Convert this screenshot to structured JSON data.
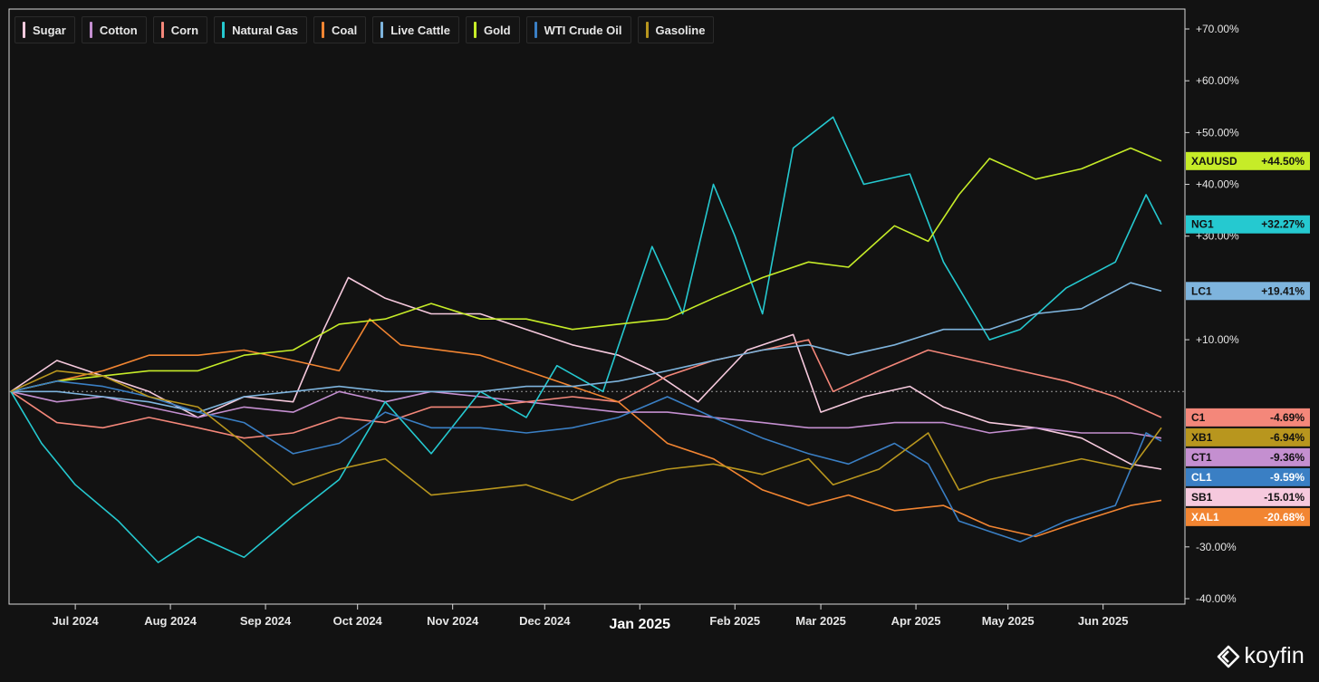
{
  "legend": [
    {
      "name": "Sugar",
      "color": "#f6c9dd"
    },
    {
      "name": "Cotton",
      "color": "#c48fd0"
    },
    {
      "name": "Corn",
      "color": "#f4877a"
    },
    {
      "name": "Natural Gas",
      "color": "#25c9d0"
    },
    {
      "name": "Coal",
      "color": "#f28532"
    },
    {
      "name": "Live Cattle",
      "color": "#7eb4dd"
    },
    {
      "name": "Gold",
      "color": "#c6ec28"
    },
    {
      "name": "WTI Crude Oil",
      "color": "#3a7fc4"
    },
    {
      "name": "Gasoline",
      "color": "#b8961e"
    }
  ],
  "brand": "koyfin",
  "chart_data": {
    "type": "line",
    "yaxis": {
      "min": -40,
      "max": 70,
      "position": "right",
      "ticks": [
        "+70.00%",
        "+60.00%",
        "+50.00%",
        "+40.00%",
        "+30.00%",
        "+10.00%",
        "-30.00%",
        "-40.00%"
      ],
      "tick_values": [
        70,
        60,
        50,
        40,
        30,
        10,
        -30,
        -40
      ]
    },
    "xaxis": {
      "start": "2024-06-10",
      "end": "2025-06-20",
      "ticks": [
        {
          "label": "Jul 2024",
          "date": "2024-07-01"
        },
        {
          "label": "Aug 2024",
          "date": "2024-08-01"
        },
        {
          "label": "Sep 2024",
          "date": "2024-09-01"
        },
        {
          "label": "Oct 2024",
          "date": "2024-10-01"
        },
        {
          "label": "Nov 2024",
          "date": "2024-11-01"
        },
        {
          "label": "Dec 2024",
          "date": "2024-12-01"
        },
        {
          "label": "Jan 2025",
          "date": "2025-01-01",
          "major": true
        },
        {
          "label": "Feb 2025",
          "date": "2025-02-01"
        },
        {
          "label": "Mar 2025",
          "date": "2025-03-01"
        },
        {
          "label": "Apr 2025",
          "date": "2025-04-01"
        },
        {
          "label": "May 2025",
          "date": "2025-05-01"
        },
        {
          "label": "Jun 2025",
          "date": "2025-06-01"
        }
      ]
    },
    "zero_line": true,
    "series": [
      {
        "name": "Sugar",
        "color": "#f6c9dd",
        "end_label": "SB1",
        "end_value": "-15.01%",
        "points": [
          [
            "2024-06-10",
            0
          ],
          [
            "2024-06-25",
            6
          ],
          [
            "2024-07-10",
            3
          ],
          [
            "2024-07-25",
            0
          ],
          [
            "2024-08-10",
            -5
          ],
          [
            "2024-08-25",
            -1
          ],
          [
            "2024-09-10",
            -2
          ],
          [
            "2024-09-20",
            12
          ],
          [
            "2024-09-28",
            22
          ],
          [
            "2024-10-10",
            18
          ],
          [
            "2024-10-25",
            15
          ],
          [
            "2024-11-10",
            15
          ],
          [
            "2024-11-25",
            12
          ],
          [
            "2024-12-10",
            9
          ],
          [
            "2024-12-25",
            7
          ],
          [
            "2025-01-05",
            4
          ],
          [
            "2025-01-20",
            -2
          ],
          [
            "2025-02-05",
            8
          ],
          [
            "2025-02-20",
            11
          ],
          [
            "2025-03-01",
            -4
          ],
          [
            "2025-03-15",
            -1
          ],
          [
            "2025-03-30",
            1
          ],
          [
            "2025-04-10",
            -3
          ],
          [
            "2025-04-25",
            -6
          ],
          [
            "2025-05-10",
            -7
          ],
          [
            "2025-05-25",
            -9
          ],
          [
            "2025-06-10",
            -14
          ],
          [
            "2025-06-20",
            -15
          ]
        ]
      },
      {
        "name": "Cotton",
        "color": "#c48fd0",
        "end_label": "CT1",
        "end_value": "-9.36%",
        "points": [
          [
            "2024-06-10",
            0
          ],
          [
            "2024-06-25",
            -2
          ],
          [
            "2024-07-10",
            -1
          ],
          [
            "2024-07-25",
            -3
          ],
          [
            "2024-08-10",
            -5
          ],
          [
            "2024-08-25",
            -3
          ],
          [
            "2024-09-10",
            -4
          ],
          [
            "2024-09-25",
            0
          ],
          [
            "2024-10-10",
            -2
          ],
          [
            "2024-10-25",
            0
          ],
          [
            "2024-11-10",
            -1
          ],
          [
            "2024-11-25",
            -2
          ],
          [
            "2024-12-10",
            -3
          ],
          [
            "2024-12-25",
            -4
          ],
          [
            "2025-01-10",
            -4
          ],
          [
            "2025-01-25",
            -5
          ],
          [
            "2025-02-10",
            -6
          ],
          [
            "2025-02-25",
            -7
          ],
          [
            "2025-03-10",
            -7
          ],
          [
            "2025-03-25",
            -6
          ],
          [
            "2025-04-10",
            -6
          ],
          [
            "2025-04-25",
            -8
          ],
          [
            "2025-05-10",
            -7
          ],
          [
            "2025-05-25",
            -8
          ],
          [
            "2025-06-10",
            -8
          ],
          [
            "2025-06-20",
            -9
          ]
        ]
      },
      {
        "name": "Corn",
        "color": "#f4877a",
        "end_label": "C1",
        "end_value": "-4.69%",
        "points": [
          [
            "2024-06-10",
            0
          ],
          [
            "2024-06-25",
            -6
          ],
          [
            "2024-07-10",
            -7
          ],
          [
            "2024-07-25",
            -5
          ],
          [
            "2024-08-10",
            -7
          ],
          [
            "2024-08-25",
            -9
          ],
          [
            "2024-09-10",
            -8
          ],
          [
            "2024-09-25",
            -5
          ],
          [
            "2024-10-10",
            -6
          ],
          [
            "2024-10-25",
            -3
          ],
          [
            "2024-11-10",
            -3
          ],
          [
            "2024-11-25",
            -2
          ],
          [
            "2024-12-10",
            -1
          ],
          [
            "2024-12-25",
            -2
          ],
          [
            "2025-01-10",
            3
          ],
          [
            "2025-01-25",
            6
          ],
          [
            "2025-02-10",
            8
          ],
          [
            "2025-02-25",
            10
          ],
          [
            "2025-03-05",
            0
          ],
          [
            "2025-03-20",
            4
          ],
          [
            "2025-04-05",
            8
          ],
          [
            "2025-04-20",
            6
          ],
          [
            "2025-05-05",
            4
          ],
          [
            "2025-05-20",
            2
          ],
          [
            "2025-06-05",
            -1
          ],
          [
            "2025-06-20",
            -5
          ]
        ]
      },
      {
        "name": "Natural Gas",
        "color": "#25c9d0",
        "end_label": "NG1",
        "end_value": "+32.27%",
        "points": [
          [
            "2024-06-10",
            0
          ],
          [
            "2024-06-20",
            -10
          ],
          [
            "2024-07-01",
            -18
          ],
          [
            "2024-07-15",
            -25
          ],
          [
            "2024-07-28",
            -33
          ],
          [
            "2024-08-10",
            -28
          ],
          [
            "2024-08-25",
            -32
          ],
          [
            "2024-09-10",
            -24
          ],
          [
            "2024-09-25",
            -17
          ],
          [
            "2024-10-10",
            -2
          ],
          [
            "2024-10-25",
            -12
          ],
          [
            "2024-11-10",
            0
          ],
          [
            "2024-11-25",
            -5
          ],
          [
            "2024-12-05",
            5
          ],
          [
            "2024-12-20",
            0
          ],
          [
            "2025-01-05",
            28
          ],
          [
            "2025-01-15",
            15
          ],
          [
            "2025-01-25",
            40
          ],
          [
            "2025-02-01",
            30
          ],
          [
            "2025-02-10",
            15
          ],
          [
            "2025-02-20",
            47
          ],
          [
            "2025-03-05",
            53
          ],
          [
            "2025-03-15",
            40
          ],
          [
            "2025-03-30",
            42
          ],
          [
            "2025-04-10",
            25
          ],
          [
            "2025-04-25",
            10
          ],
          [
            "2025-05-05",
            12
          ],
          [
            "2025-05-20",
            20
          ],
          [
            "2025-06-05",
            25
          ],
          [
            "2025-06-15",
            38
          ],
          [
            "2025-06-20",
            32.27
          ]
        ]
      },
      {
        "name": "Coal",
        "color": "#f28532",
        "end_label": "XAL1",
        "end_value": "-20.68%",
        "points": [
          [
            "2024-06-10",
            0
          ],
          [
            "2024-06-25",
            2
          ],
          [
            "2024-07-10",
            4
          ],
          [
            "2024-07-25",
            7
          ],
          [
            "2024-08-10",
            7
          ],
          [
            "2024-08-25",
            8
          ],
          [
            "2024-09-10",
            6
          ],
          [
            "2024-09-25",
            4
          ],
          [
            "2024-10-05",
            14
          ],
          [
            "2024-10-15",
            9
          ],
          [
            "2024-11-10",
            7
          ],
          [
            "2024-11-25",
            4
          ],
          [
            "2024-12-10",
            1
          ],
          [
            "2024-12-25",
            -2
          ],
          [
            "2025-01-10",
            -10
          ],
          [
            "2025-01-25",
            -13
          ],
          [
            "2025-02-10",
            -19
          ],
          [
            "2025-02-25",
            -22
          ],
          [
            "2025-03-10",
            -20
          ],
          [
            "2025-03-25",
            -23
          ],
          [
            "2025-04-10",
            -22
          ],
          [
            "2025-04-25",
            -26
          ],
          [
            "2025-05-10",
            -28
          ],
          [
            "2025-05-25",
            -25
          ],
          [
            "2025-06-10",
            -22
          ],
          [
            "2025-06-20",
            -21
          ]
        ]
      },
      {
        "name": "Live Cattle",
        "color": "#7eb4dd",
        "end_label": "LC1",
        "end_value": "+19.41%",
        "points": [
          [
            "2024-06-10",
            0
          ],
          [
            "2024-06-25",
            0
          ],
          [
            "2024-07-10",
            -1
          ],
          [
            "2024-07-25",
            -2
          ],
          [
            "2024-08-10",
            -4
          ],
          [
            "2024-08-25",
            -1
          ],
          [
            "2024-09-10",
            0
          ],
          [
            "2024-09-25",
            1
          ],
          [
            "2024-10-10",
            0
          ],
          [
            "2024-10-25",
            0
          ],
          [
            "2024-11-10",
            0
          ],
          [
            "2024-11-25",
            1
          ],
          [
            "2024-12-10",
            1
          ],
          [
            "2024-12-25",
            2
          ],
          [
            "2025-01-10",
            4
          ],
          [
            "2025-01-25",
            6
          ],
          [
            "2025-02-10",
            8
          ],
          [
            "2025-02-25",
            9
          ],
          [
            "2025-03-10",
            7
          ],
          [
            "2025-03-25",
            9
          ],
          [
            "2025-04-10",
            12
          ],
          [
            "2025-04-25",
            12
          ],
          [
            "2025-05-10",
            15
          ],
          [
            "2025-05-25",
            16
          ],
          [
            "2025-06-10",
            21
          ],
          [
            "2025-06-20",
            19.41
          ]
        ]
      },
      {
        "name": "Gold",
        "color": "#c6ec28",
        "end_label": "XAUUSD",
        "end_value": "+44.50%",
        "points": [
          [
            "2024-06-10",
            0
          ],
          [
            "2024-06-25",
            2
          ],
          [
            "2024-07-10",
            3
          ],
          [
            "2024-07-25",
            4
          ],
          [
            "2024-08-10",
            4
          ],
          [
            "2024-08-25",
            7
          ],
          [
            "2024-09-10",
            8
          ],
          [
            "2024-09-25",
            13
          ],
          [
            "2024-10-10",
            14
          ],
          [
            "2024-10-25",
            17
          ],
          [
            "2024-11-10",
            14
          ],
          [
            "2024-11-25",
            14
          ],
          [
            "2024-12-10",
            12
          ],
          [
            "2024-12-25",
            13
          ],
          [
            "2025-01-10",
            14
          ],
          [
            "2025-01-25",
            18
          ],
          [
            "2025-02-10",
            22
          ],
          [
            "2025-02-25",
            25
          ],
          [
            "2025-03-10",
            24
          ],
          [
            "2025-03-25",
            32
          ],
          [
            "2025-04-05",
            29
          ],
          [
            "2025-04-15",
            38
          ],
          [
            "2025-04-25",
            45
          ],
          [
            "2025-05-10",
            41
          ],
          [
            "2025-05-25",
            43
          ],
          [
            "2025-06-10",
            47
          ],
          [
            "2025-06-20",
            44.5
          ]
        ]
      },
      {
        "name": "WTI Crude Oil",
        "color": "#3a7fc4",
        "end_label": "CL1",
        "end_value": "-9.59%",
        "points": [
          [
            "2024-06-10",
            0
          ],
          [
            "2024-06-25",
            2
          ],
          [
            "2024-07-10",
            1
          ],
          [
            "2024-07-25",
            -1
          ],
          [
            "2024-08-10",
            -4
          ],
          [
            "2024-08-25",
            -6
          ],
          [
            "2024-09-10",
            -12
          ],
          [
            "2024-09-25",
            -10
          ],
          [
            "2024-10-10",
            -4
          ],
          [
            "2024-10-25",
            -7
          ],
          [
            "2024-11-10",
            -7
          ],
          [
            "2024-11-25",
            -8
          ],
          [
            "2024-12-10",
            -7
          ],
          [
            "2024-12-25",
            -5
          ],
          [
            "2025-01-10",
            -1
          ],
          [
            "2025-01-25",
            -5
          ],
          [
            "2025-02-10",
            -9
          ],
          [
            "2025-02-25",
            -12
          ],
          [
            "2025-03-10",
            -14
          ],
          [
            "2025-03-25",
            -10
          ],
          [
            "2025-04-05",
            -14
          ],
          [
            "2025-04-15",
            -25
          ],
          [
            "2025-04-25",
            -27
          ],
          [
            "2025-05-05",
            -29
          ],
          [
            "2025-05-20",
            -25
          ],
          [
            "2025-06-05",
            -22
          ],
          [
            "2025-06-15",
            -8
          ],
          [
            "2025-06-20",
            -9.59
          ]
        ]
      },
      {
        "name": "Gasoline",
        "color": "#b8961e",
        "end_label": "XB1",
        "end_value": "-6.94%",
        "points": [
          [
            "2024-06-10",
            0
          ],
          [
            "2024-06-25",
            4
          ],
          [
            "2024-07-10",
            3
          ],
          [
            "2024-07-25",
            -1
          ],
          [
            "2024-08-10",
            -3
          ],
          [
            "2024-08-25",
            -10
          ],
          [
            "2024-09-10",
            -18
          ],
          [
            "2024-09-25",
            -15
          ],
          [
            "2024-10-10",
            -13
          ],
          [
            "2024-10-25",
            -20
          ],
          [
            "2024-11-10",
            -19
          ],
          [
            "2024-11-25",
            -18
          ],
          [
            "2024-12-10",
            -21
          ],
          [
            "2024-12-25",
            -17
          ],
          [
            "2025-01-10",
            -15
          ],
          [
            "2025-01-25",
            -14
          ],
          [
            "2025-02-10",
            -16
          ],
          [
            "2025-02-25",
            -13
          ],
          [
            "2025-03-05",
            -18
          ],
          [
            "2025-03-20",
            -15
          ],
          [
            "2025-04-05",
            -8
          ],
          [
            "2025-04-15",
            -19
          ],
          [
            "2025-04-25",
            -17
          ],
          [
            "2025-05-10",
            -15
          ],
          [
            "2025-05-25",
            -13
          ],
          [
            "2025-06-10",
            -15
          ],
          [
            "2025-06-20",
            -7
          ]
        ]
      }
    ]
  }
}
